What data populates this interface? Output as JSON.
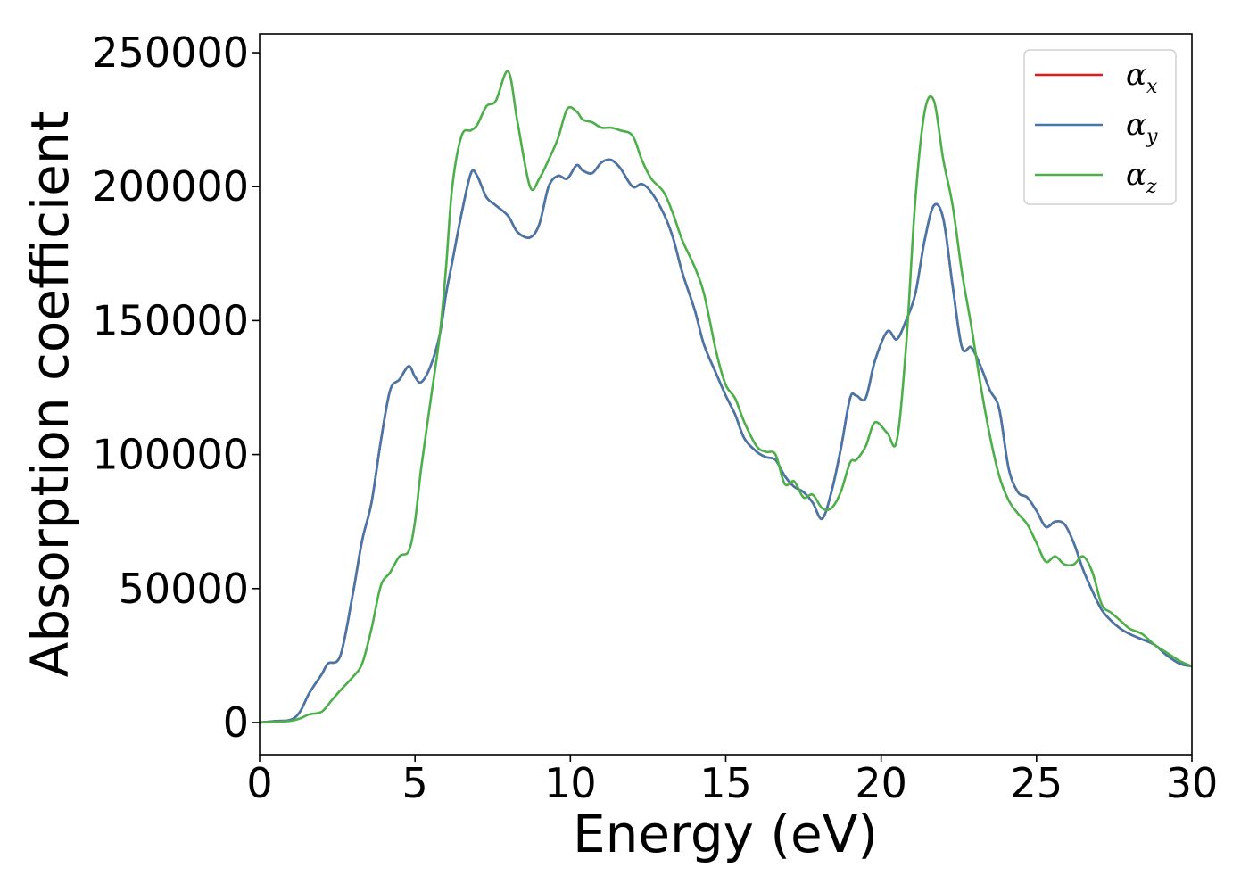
{
  "chart_data": {
    "type": "line",
    "xlabel": "Energy (eV)",
    "ylabel": "Absorption coefficient",
    "xlim": [
      0,
      30
    ],
    "ylim": [
      -12000,
      257000
    ],
    "xticks": [
      0,
      5,
      10,
      15,
      20,
      25,
      30
    ],
    "yticks": [
      0,
      50000,
      100000,
      150000,
      200000,
      250000
    ],
    "grid": false,
    "legend": {
      "position": "top-right",
      "symbol": "α",
      "subscripts": [
        "x",
        "y",
        "z"
      ]
    },
    "series": [
      {
        "name": "αx",
        "color": "#e41a1c",
        "x": [
          0,
          0.5,
          1.0,
          1.3,
          1.6,
          2.0,
          2.2,
          2.6,
          3.0,
          3.3,
          3.6,
          3.9,
          4.2,
          4.5,
          4.8,
          5.0,
          5.2,
          5.5,
          5.8,
          6.0,
          6.2,
          6.5,
          6.8,
          7.0,
          7.3,
          7.6,
          8.0,
          8.3,
          8.7,
          9.0,
          9.3,
          9.6,
          9.9,
          10.2,
          10.4,
          10.7,
          11.0,
          11.3,
          11.6,
          12.0,
          12.3,
          12.6,
          13.0,
          13.3,
          13.6,
          14.0,
          14.3,
          14.7,
          15.0,
          15.3,
          15.6,
          16.0,
          16.3,
          16.6,
          16.9,
          17.2,
          17.5,
          17.8,
          18.1,
          18.4,
          18.7,
          19.0,
          19.2,
          19.5,
          19.8,
          20.2,
          20.5,
          20.8,
          21.1,
          21.4,
          21.7,
          22.0,
          22.3,
          22.6,
          22.9,
          23.2,
          23.5,
          23.8,
          24.1,
          24.4,
          24.7,
          25.0,
          25.3,
          25.6,
          25.9,
          26.2,
          26.5,
          26.8,
          27.1,
          27.4,
          27.7,
          28.0,
          28.4,
          28.8,
          29.2,
          29.6,
          30.0
        ],
        "y": [
          0,
          500,
          1000,
          4000,
          11000,
          18000,
          22000,
          25000,
          48000,
          68000,
          82000,
          105000,
          124000,
          128000,
          133000,
          129000,
          127000,
          133000,
          145000,
          160000,
          172000,
          190000,
          205000,
          204000,
          196000,
          193000,
          189000,
          183000,
          181000,
          186000,
          200000,
          204000,
          203000,
          208000,
          206000,
          205000,
          209000,
          210000,
          207000,
          200000,
          201000,
          198000,
          190000,
          181000,
          168000,
          154000,
          141000,
          130000,
          122000,
          115000,
          106000,
          101000,
          99000,
          98000,
          92000,
          88000,
          86000,
          82000,
          76000,
          86000,
          102000,
          121000,
          122000,
          121000,
          135000,
          146000,
          143000,
          150000,
          160000,
          180000,
          193000,
          188000,
          163000,
          140000,
          140000,
          133000,
          124000,
          117000,
          95000,
          86000,
          84000,
          79000,
          73000,
          75000,
          74000,
          67000,
          57000,
          49000,
          42000,
          38000,
          35000,
          33000,
          31000,
          29000,
          25000,
          22000,
          21000
        ]
      },
      {
        "name": "αy",
        "color": "#4477aa",
        "x": [
          0,
          0.5,
          1.0,
          1.3,
          1.6,
          2.0,
          2.2,
          2.6,
          3.0,
          3.3,
          3.6,
          3.9,
          4.2,
          4.5,
          4.8,
          5.0,
          5.2,
          5.5,
          5.8,
          6.0,
          6.2,
          6.5,
          6.8,
          7.0,
          7.3,
          7.6,
          8.0,
          8.3,
          8.7,
          9.0,
          9.3,
          9.6,
          9.9,
          10.2,
          10.4,
          10.7,
          11.0,
          11.3,
          11.6,
          12.0,
          12.3,
          12.6,
          13.0,
          13.3,
          13.6,
          14.0,
          14.3,
          14.7,
          15.0,
          15.3,
          15.6,
          16.0,
          16.3,
          16.6,
          16.9,
          17.2,
          17.5,
          17.8,
          18.1,
          18.4,
          18.7,
          19.0,
          19.2,
          19.5,
          19.8,
          20.2,
          20.5,
          20.8,
          21.1,
          21.4,
          21.7,
          22.0,
          22.3,
          22.6,
          22.9,
          23.2,
          23.5,
          23.8,
          24.1,
          24.4,
          24.7,
          25.0,
          25.3,
          25.6,
          25.9,
          26.2,
          26.5,
          26.8,
          27.1,
          27.4,
          27.7,
          28.0,
          28.4,
          28.8,
          29.2,
          29.6,
          30.0
        ],
        "y": [
          0,
          500,
          1000,
          4000,
          11000,
          18000,
          22000,
          25000,
          48000,
          68000,
          82000,
          105000,
          124000,
          128000,
          133000,
          129000,
          127000,
          133000,
          145000,
          160000,
          172000,
          190000,
          205000,
          204000,
          196000,
          193000,
          189000,
          183000,
          181000,
          186000,
          200000,
          204000,
          203000,
          208000,
          206000,
          205000,
          209000,
          210000,
          207000,
          200000,
          201000,
          198000,
          190000,
          181000,
          168000,
          154000,
          141000,
          130000,
          122000,
          115000,
          106000,
          101000,
          99000,
          98000,
          92000,
          88000,
          86000,
          82000,
          76000,
          86000,
          102000,
          121000,
          122000,
          121000,
          135000,
          146000,
          143000,
          150000,
          160000,
          180000,
          193000,
          188000,
          163000,
          140000,
          140000,
          133000,
          124000,
          117000,
          95000,
          86000,
          84000,
          79000,
          73000,
          75000,
          74000,
          67000,
          57000,
          49000,
          42000,
          38000,
          35000,
          33000,
          31000,
          29000,
          25000,
          22000,
          21000
        ]
      },
      {
        "name": "αz",
        "color": "#4daf4a",
        "x": [
          0,
          0.5,
          1.0,
          1.3,
          1.6,
          2.0,
          2.3,
          2.6,
          3.0,
          3.3,
          3.6,
          3.9,
          4.2,
          4.5,
          4.8,
          5.0,
          5.2,
          5.5,
          5.8,
          6.0,
          6.2,
          6.5,
          6.8,
          7.0,
          7.3,
          7.6,
          8.0,
          8.3,
          8.7,
          9.0,
          9.3,
          9.6,
          9.9,
          10.2,
          10.4,
          10.7,
          11.0,
          11.3,
          11.6,
          12.0,
          12.3,
          12.6,
          13.0,
          13.3,
          13.6,
          14.0,
          14.3,
          14.7,
          15.0,
          15.3,
          15.6,
          16.0,
          16.3,
          16.6,
          16.9,
          17.2,
          17.5,
          17.8,
          18.1,
          18.4,
          18.7,
          19.0,
          19.2,
          19.5,
          19.8,
          20.2,
          20.5,
          20.8,
          21.1,
          21.4,
          21.7,
          22.0,
          22.3,
          22.6,
          22.9,
          23.2,
          23.5,
          23.8,
          24.1,
          24.4,
          24.7,
          25.0,
          25.3,
          25.6,
          25.9,
          26.2,
          26.5,
          26.8,
          27.1,
          27.4,
          27.7,
          28.0,
          28.4,
          28.8,
          29.2,
          29.6,
          30.0
        ],
        "y": [
          0,
          200,
          600,
          1500,
          3000,
          4000,
          8000,
          12000,
          17000,
          22000,
          35000,
          51000,
          56000,
          62000,
          64000,
          75000,
          95000,
          120000,
          145000,
          170000,
          200000,
          219000,
          221000,
          223000,
          230000,
          232000,
          243000,
          224000,
          200000,
          203000,
          210000,
          218000,
          229000,
          228000,
          225000,
          224000,
          222000,
          222000,
          221000,
          219000,
          210000,
          203000,
          198000,
          190000,
          180000,
          170000,
          160000,
          138000,
          126000,
          121000,
          112000,
          103000,
          101000,
          100000,
          89000,
          90000,
          84000,
          85000,
          80000,
          80000,
          86000,
          97000,
          98000,
          103000,
          112000,
          108000,
          105000,
          140000,
          195000,
          228000,
          232000,
          210000,
          193000,
          168000,
          148000,
          126000,
          107000,
          92000,
          83000,
          78000,
          74000,
          67000,
          60000,
          62000,
          59000,
          59000,
          62000,
          56000,
          44000,
          41000,
          38000,
          35000,
          33000,
          29000,
          26000,
          23000,
          21000
        ]
      }
    ]
  }
}
